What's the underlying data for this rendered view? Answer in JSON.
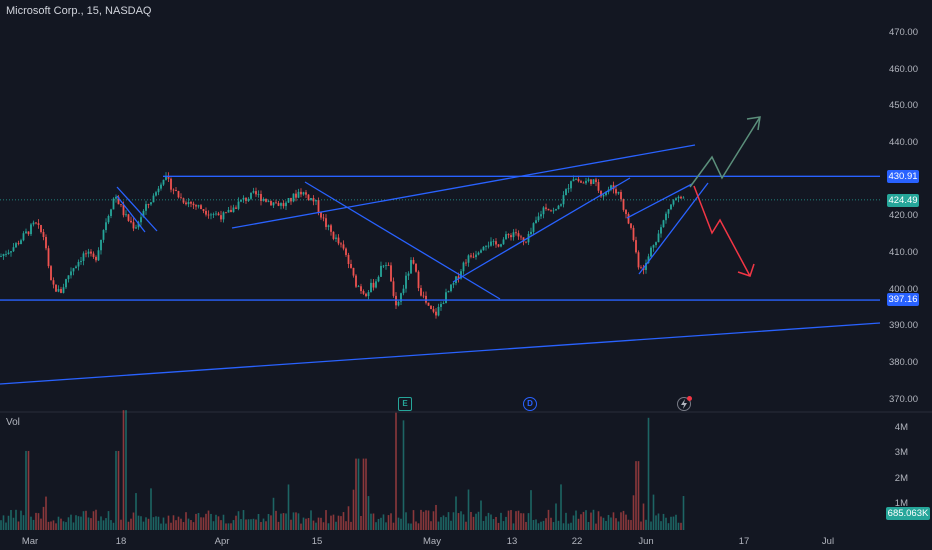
{
  "header": {
    "symbol_title": "Microsoft Corp., 15, NASDAQ"
  },
  "volume_pane": {
    "label": "Vol",
    "current_value": "685.063K",
    "axis_labels": [
      "4M",
      "3M",
      "2M",
      "1M"
    ]
  },
  "price_axis": {
    "labels": [
      "470.00",
      "460.00",
      "450.00",
      "440.00",
      "430.00",
      "420.00",
      "410.00",
      "400.00",
      "390.00",
      "380.00",
      "370.00"
    ],
    "current_price_tag": "424.49",
    "resistance_tag": "430.91",
    "support_tag": "397.16"
  },
  "time_axis": {
    "labels": [
      "Mar",
      "18",
      "Apr",
      "15",
      "May",
      "13",
      "22",
      "Jun",
      "17",
      "Jul"
    ]
  },
  "events": {
    "earnings_icon": "E",
    "dividend_icon": "D",
    "flash-icon": "flash-icon"
  },
  "colors": {
    "background": "#131722",
    "up_candle": "#26a69a",
    "down_candle": "#ef5350",
    "drawing_line": "#2962ff",
    "current_price_tag": "#26a69a",
    "level_tag": "#2962ff",
    "bull_arrow": "#5b8f7b",
    "bear_arrow": "#f23645"
  },
  "chart_data": {
    "type": "candlestick",
    "title": "Microsoft Corp., 15, NASDAQ",
    "ylim": [
      368,
      475
    ],
    "x_ticks": [
      "Mar",
      "18",
      "Apr",
      "15",
      "May",
      "13",
      "22",
      "Jun",
      "17",
      "Jul"
    ],
    "y_ticks": [
      470,
      460,
      450,
      440,
      430,
      420,
      410,
      400,
      390,
      380,
      370
    ],
    "levels": [
      {
        "name": "resistance",
        "price": 430.91
      },
      {
        "name": "support",
        "price": 397.16
      }
    ],
    "last_price": 424.49,
    "last_volume": "685.063K",
    "approx_close_path": [
      {
        "x": "Mar",
        "y": 411
      },
      {
        "x": "Mar",
        "y": 416
      },
      {
        "x": "Mar",
        "y": 400
      },
      {
        "x": "18",
        "y": 426
      },
      {
        "x": "18",
        "y": 418
      },
      {
        "x": "18",
        "y": 430
      },
      {
        "x": "Apr",
        "y": 421
      },
      {
        "x": "Apr",
        "y": 427
      },
      {
        "x": "15",
        "y": 424
      },
      {
        "x": "15",
        "y": 415
      },
      {
        "x": "15",
        "y": 402
      },
      {
        "x": "May",
        "y": 393
      },
      {
        "x": "May",
        "y": 398
      },
      {
        "x": "May",
        "y": 404
      },
      {
        "x": "13",
        "y": 414
      },
      {
        "x": "22",
        "y": 425
      },
      {
        "x": "22",
        "y": 430
      },
      {
        "x": "Jun",
        "y": 418
      },
      {
        "x": "Jun",
        "y": 406
      },
      {
        "x": "Jun",
        "y": 415
      },
      {
        "x": "Jun",
        "y": 424.49
      }
    ]
  }
}
